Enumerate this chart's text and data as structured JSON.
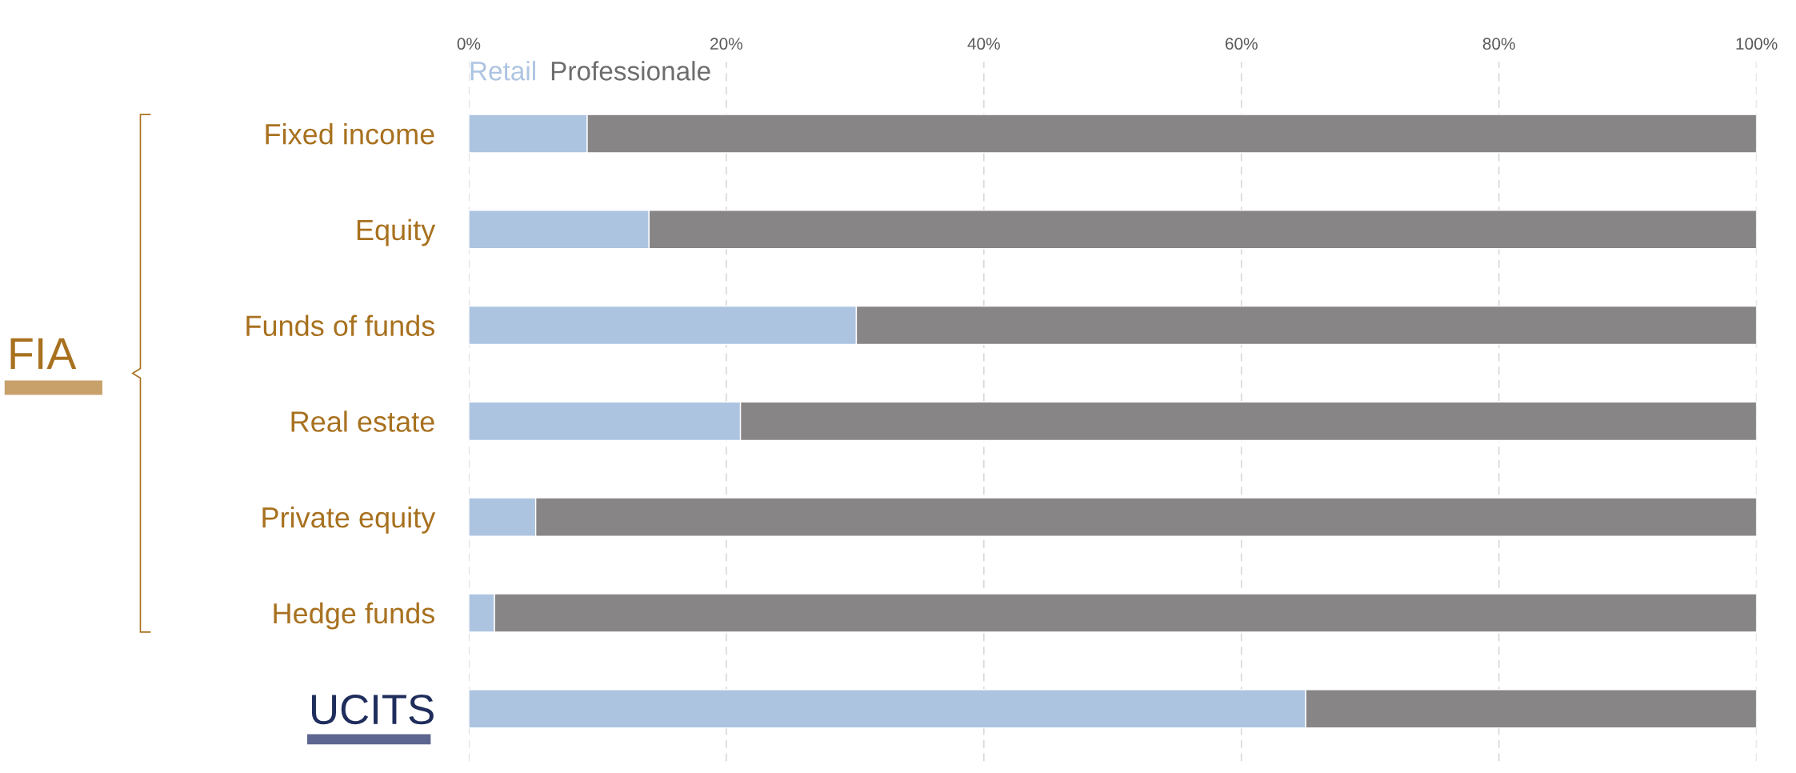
{
  "chart_data": {
    "type": "bar",
    "orientation": "horizontal",
    "stacked": true,
    "categories": [
      "Fixed income",
      "Equity",
      "Funds of funds",
      "Real estate",
      "Private equity",
      "Hedge funds",
      "UCITS"
    ],
    "series": [
      {
        "name": "Retail",
        "color": "#adc4e1",
        "values": [
          9.2,
          14.0,
          30.1,
          21.1,
          5.2,
          2.0,
          65.0
        ]
      },
      {
        "name": "Professionale",
        "color": "#878586",
        "values": [
          90.8,
          86.0,
          69.9,
          78.9,
          94.8,
          98.0,
          35.0
        ]
      }
    ],
    "xlim": [
      0,
      100
    ],
    "xticks": [
      {
        "value": 0,
        "label": "0%"
      },
      {
        "value": 20,
        "label": "20%"
      },
      {
        "value": 40,
        "label": "40%"
      },
      {
        "value": 60,
        "label": "60%"
      },
      {
        "value": 80,
        "label": "80%"
      },
      {
        "value": 100,
        "label": "100%"
      }
    ],
    "grid": "x",
    "legend": "top left",
    "annotations": [
      "FIA"
    ]
  }
}
